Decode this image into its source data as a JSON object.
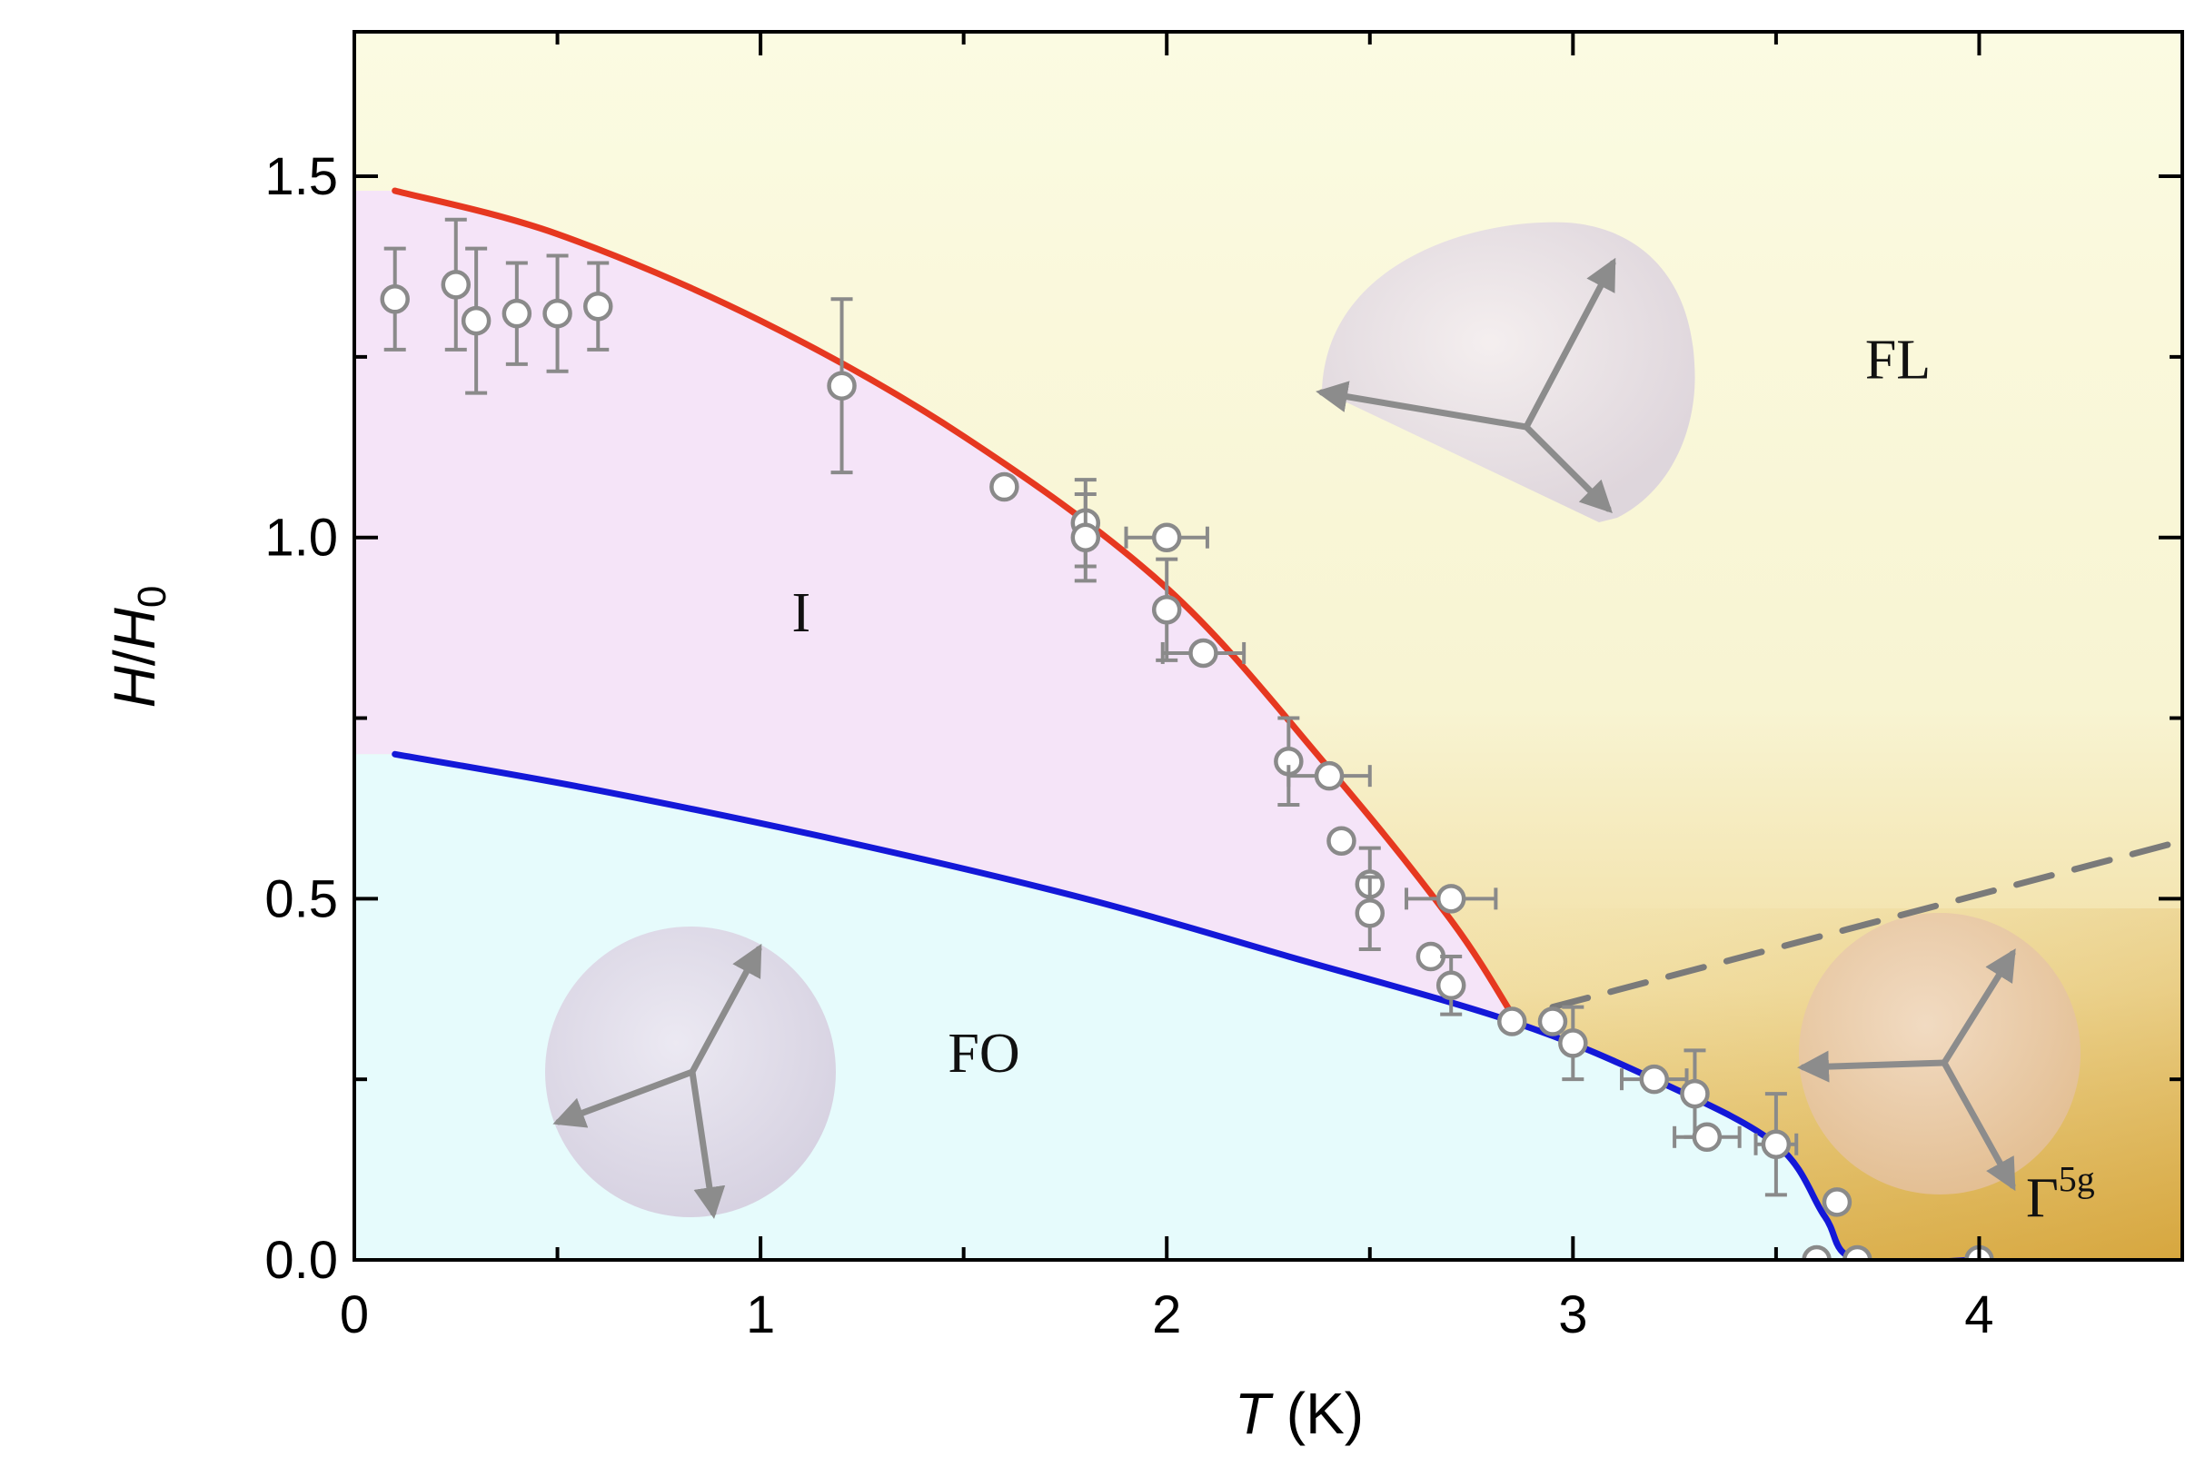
{
  "chart_data": {
    "type": "scatter",
    "xlabel": {
      "var": "T",
      "unit": " (K)"
    },
    "ylabel": {
      "var": "H",
      "sep": "/",
      "var2": "H",
      "sub": "0"
    },
    "xlim": [
      0,
      4.5
    ],
    "ylim": [
      0,
      1.7
    ],
    "x_ticks": [
      0,
      1,
      2,
      3,
      4
    ],
    "x_tick_labels": [
      "0",
      "1",
      "2",
      "3",
      "4"
    ],
    "x_minor_ticks": [
      0.5,
      1.5,
      2.5,
      3.5
    ],
    "y_ticks": [
      0,
      0.5,
      1.0,
      1.5
    ],
    "y_tick_labels": [
      "0.0",
      "0.5",
      "1.0",
      "1.5"
    ],
    "y_minor_ticks": [
      0.25,
      0.75,
      1.25
    ],
    "grid": false,
    "regions": [
      {
        "label": "FL",
        "x": 3.8,
        "y": 1.22,
        "color": "#f9f8db"
      },
      {
        "label": "I",
        "x": 1.1,
        "y": 0.87,
        "color": "#f5e6f8"
      },
      {
        "label": "FO",
        "x": 1.55,
        "y": 0.26,
        "color": "#e7fbfb"
      },
      {
        "label": "Γ",
        "sup": "5g",
        "x": 4.2,
        "y": 0.06,
        "color": "#e2bd60"
      }
    ],
    "curves": [
      {
        "style": "red",
        "color": "#e63820",
        "points": [
          [
            0.1,
            1.48
          ],
          [
            0.5,
            1.42
          ],
          [
            1.0,
            1.3
          ],
          [
            1.5,
            1.14
          ],
          [
            2.0,
            0.93
          ],
          [
            2.4,
            0.68
          ],
          [
            2.7,
            0.47
          ],
          [
            2.85,
            0.34
          ]
        ]
      },
      {
        "style": "blue",
        "color": "#1418d8",
        "points": [
          [
            0.1,
            0.7
          ],
          [
            0.6,
            0.65
          ],
          [
            1.2,
            0.58
          ],
          [
            1.8,
            0.5
          ],
          [
            2.3,
            0.42
          ],
          [
            2.85,
            0.33
          ],
          [
            3.2,
            0.25
          ],
          [
            3.5,
            0.16
          ],
          [
            3.62,
            0.06
          ],
          [
            3.7,
            0
          ],
          [
            4.0,
            0
          ]
        ]
      },
      {
        "style": "dashed",
        "color": "#7a7a7a",
        "points": [
          [
            2.95,
            0.35
          ],
          [
            4.5,
            0.58
          ]
        ]
      }
    ],
    "points": [
      {
        "x": 0.1,
        "y": 1.33,
        "yerr": 0.07
      },
      {
        "x": 0.25,
        "y": 1.35,
        "yerr": 0.09
      },
      {
        "x": 0.3,
        "y": 1.3,
        "yerr": 0.1
      },
      {
        "x": 0.4,
        "y": 1.31,
        "yerr": 0.07
      },
      {
        "x": 0.5,
        "y": 1.31,
        "yerr": 0.08
      },
      {
        "x": 0.6,
        "y": 1.32,
        "yerr": 0.06
      },
      {
        "x": 1.2,
        "y": 1.21,
        "yerr": 0.12
      },
      {
        "x": 1.6,
        "y": 1.07
      },
      {
        "x": 1.8,
        "y": 1.02,
        "yerr": 0.06
      },
      {
        "x": 1.8,
        "y": 1.0,
        "yerr": 0.06
      },
      {
        "x": 2.0,
        "y": 1.0,
        "xerr": 0.1
      },
      {
        "x": 2.0,
        "y": 0.9,
        "yerr": 0.07
      },
      {
        "x": 2.09,
        "y": 0.84,
        "xerr": 0.1
      },
      {
        "x": 2.3,
        "y": 0.69,
        "yerr": 0.06
      },
      {
        "x": 2.4,
        "y": 0.67,
        "xerr": 0.1
      },
      {
        "x": 2.43,
        "y": 0.58
      },
      {
        "x": 2.5,
        "y": 0.52,
        "yerr": 0.05
      },
      {
        "x": 2.5,
        "y": 0.48,
        "yerr": 0.05
      },
      {
        "x": 2.65,
        "y": 0.42
      },
      {
        "x": 2.7,
        "y": 0.5,
        "xerr": 0.11
      },
      {
        "x": 2.7,
        "y": 0.38,
        "yerr": 0.04
      },
      {
        "x": 2.85,
        "y": 0.33
      },
      {
        "x": 2.95,
        "y": 0.33
      },
      {
        "x": 3.0,
        "y": 0.3,
        "yerr": 0.05
      },
      {
        "x": 3.2,
        "y": 0.25,
        "xerr": 0.08
      },
      {
        "x": 3.3,
        "y": 0.23,
        "yerr": 0.06
      },
      {
        "x": 3.33,
        "y": 0.17,
        "xerr": 0.08
      },
      {
        "x": 3.5,
        "y": 0.16,
        "yerr": 0.07,
        "xerr": 0.05
      },
      {
        "x": 3.65,
        "y": 0.08
      },
      {
        "x": 3.6,
        "y": 0.0
      },
      {
        "x": 3.7,
        "y": 0.0
      },
      {
        "x": 4.0,
        "y": 0.0
      }
    ]
  }
}
